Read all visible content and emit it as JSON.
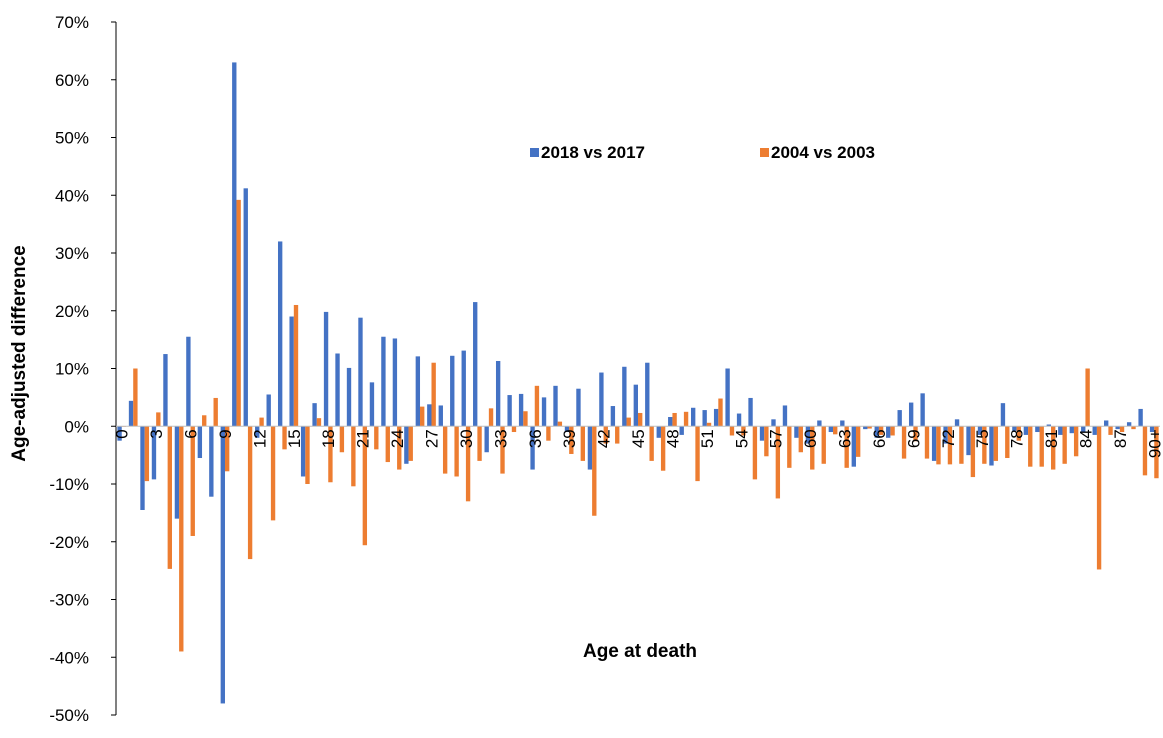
{
  "chart_data": {
    "type": "bar",
    "title": "",
    "xlabel": "Age at death",
    "ylabel": "Age-adjusted difference",
    "ylim": [
      -0.5,
      0.7
    ],
    "yticks": [
      0.7,
      0.6,
      0.5,
      0.4,
      0.3,
      0.2,
      0.1,
      0.0,
      -0.1,
      -0.2,
      -0.3,
      -0.4,
      -0.5
    ],
    "ytick_labels": [
      "70%",
      "60%",
      "50%",
      "40%",
      "30%",
      "20%",
      "10%",
      "0%",
      "-10%",
      "-20%",
      "-30%",
      "-40%",
      "-50%"
    ],
    "grid": false,
    "legend_position": "top-center",
    "categories": [
      "0",
      "1",
      "2",
      "3",
      "4",
      "5",
      "6",
      "7",
      "8",
      "9",
      "10",
      "11",
      "12",
      "13",
      "14",
      "15",
      "16",
      "17",
      "18",
      "19",
      "20",
      "21",
      "22",
      "23",
      "24",
      "25",
      "26",
      "27",
      "28",
      "29",
      "30",
      "31",
      "32",
      "33",
      "34",
      "35",
      "36",
      "37",
      "38",
      "39",
      "40",
      "41",
      "42",
      "43",
      "44",
      "45",
      "46",
      "47",
      "48",
      "49",
      "50",
      "51",
      "52",
      "53",
      "54",
      "55",
      "56",
      "57",
      "58",
      "59",
      "60",
      "61",
      "62",
      "63",
      "64",
      "65",
      "66",
      "67",
      "68",
      "69",
      "70",
      "71",
      "72",
      "73",
      "74",
      "75",
      "76",
      "77",
      "78",
      "79",
      "80",
      "81",
      "82",
      "83",
      "84",
      "85",
      "86",
      "87",
      "88",
      "89",
      "90+"
    ],
    "shown_tick_labels": [
      "0",
      "3",
      "6",
      "9",
      "12",
      "15",
      "18",
      "21",
      "24",
      "27",
      "30",
      "33",
      "36",
      "39",
      "42",
      "45",
      "48",
      "51",
      "54",
      "57",
      "60",
      "63",
      "66",
      "69",
      "72",
      "75",
      "78",
      "81",
      "84",
      "87",
      "90+"
    ],
    "series": [
      {
        "name": "2018 vs 2017",
        "color": "#4472C4",
        "values": [
          -0.025,
          0.044,
          -0.145,
          -0.092,
          0.125,
          -0.16,
          0.155,
          -0.055,
          -0.122,
          -0.48,
          0.63,
          0.412,
          -0.02,
          0.055,
          0.32,
          0.19,
          -0.087,
          0.04,
          0.198,
          0.126,
          0.101,
          0.188,
          0.076,
          0.155,
          0.152,
          -0.065,
          0.121,
          0.038,
          0.036,
          0.122,
          0.131,
          0.215,
          -0.045,
          0.113,
          0.054,
          0.056,
          -0.075,
          0.05,
          0.07,
          -0.01,
          0.065,
          -0.075,
          0.093,
          0.035,
          0.103,
          0.072,
          0.11,
          -0.02,
          0.016,
          -0.015,
          0.032,
          0.028,
          0.03,
          0.1,
          0.022,
          0.049,
          -0.025,
          0.012,
          0.036,
          -0.02,
          -0.03,
          0.01,
          -0.01,
          0.01,
          -0.07,
          -0.005,
          -0.02,
          -0.02,
          0.028,
          0.041,
          0.057,
          -0.06,
          -0.03,
          0.012,
          -0.05,
          -0.015,
          -0.068,
          0.04,
          -0.008,
          -0.015,
          -0.01,
          0.003,
          -0.015,
          -0.012,
          -0.01,
          -0.015,
          0.01,
          -0.005,
          0.007,
          0.03,
          -0.01
        ]
      },
      {
        "name": "2004 vs 2003",
        "color": "#ED7D31",
        "values": [
          0.0,
          0.1,
          -0.095,
          0.024,
          -0.247,
          -0.39,
          -0.19,
          0.019,
          0.049,
          -0.078,
          0.392,
          -0.23,
          0.015,
          -0.163,
          -0.04,
          0.21,
          -0.1,
          0.014,
          -0.097,
          -0.045,
          -0.104,
          -0.206,
          -0.04,
          -0.062,
          -0.075,
          -0.06,
          0.034,
          0.11,
          -0.082,
          -0.087,
          -0.13,
          -0.06,
          0.031,
          -0.082,
          -0.01,
          0.026,
          0.07,
          -0.025,
          0.008,
          -0.048,
          -0.06,
          -0.155,
          -0.03,
          -0.03,
          0.015,
          0.023,
          -0.06,
          -0.077,
          0.023,
          0.025,
          -0.095,
          0.006,
          0.048,
          -0.016,
          -0.016,
          -0.092,
          -0.052,
          -0.125,
          -0.072,
          -0.045,
          -0.075,
          -0.065,
          -0.014,
          -0.072,
          -0.053,
          -0.004,
          -0.015,
          -0.016,
          -0.056,
          -0.026,
          -0.056,
          -0.066,
          -0.066,
          -0.065,
          -0.088,
          -0.065,
          -0.06,
          -0.055,
          -0.025,
          -0.07,
          -0.07,
          -0.075,
          -0.065,
          -0.052,
          0.1,
          -0.248,
          -0.015,
          -0.01,
          -0.005,
          -0.085,
          -0.09
        ]
      }
    ]
  }
}
